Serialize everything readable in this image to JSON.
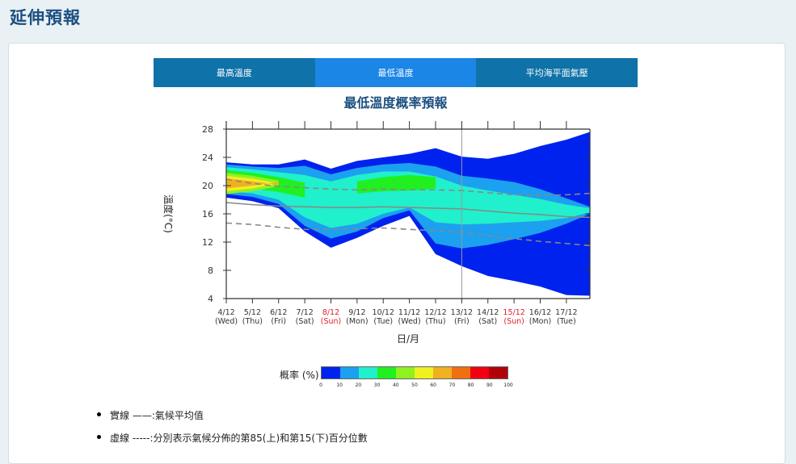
{
  "page": {
    "title": "延伸預報"
  },
  "tabs": [
    {
      "label": "最高溫度",
      "active": false
    },
    {
      "label": "最低溫度",
      "active": true
    },
    {
      "label": "平均海平面氣壓",
      "active": false
    }
  ],
  "chart_data": {
    "type": "area",
    "title": "最低溫度概率預報",
    "xlabel": "日/月",
    "ylabel": "溫度(°C)",
    "ylim": [
      4,
      28
    ],
    "yticks": [
      4,
      8,
      12,
      16,
      20,
      24,
      28
    ],
    "x_dates": [
      "4/12",
      "5/12",
      "6/12",
      "7/12",
      "8/12",
      "9/12",
      "10/12",
      "11/12",
      "12/12",
      "13/12",
      "14/12",
      "15/12",
      "16/12",
      "17/12"
    ],
    "x_days": [
      "(Wed)",
      "(Thu)",
      "(Fri)",
      "(Sat)",
      "(Sun)",
      "(Mon)",
      "(Tue)",
      "(Wed)",
      "(Thu)",
      "(Fri)",
      "(Sat)",
      "(Sun)",
      "(Mon)",
      "(Tue)"
    ],
    "x_red": [
      false,
      false,
      false,
      false,
      true,
      false,
      false,
      false,
      false,
      false,
      false,
      true,
      false,
      false
    ],
    "divider_x": 9,
    "x_positions": [
      0,
      1,
      2,
      3,
      4,
      5,
      6,
      7,
      8,
      9,
      10,
      11,
      12,
      13,
      13.9
    ],
    "climate_mean": [
      17.6,
      17.3,
      17.1,
      17.0,
      16.9,
      16.9,
      17.0,
      16.9,
      16.8,
      16.7,
      16.4,
      16.1,
      15.9,
      15.6,
      15.5
    ],
    "percentile_85": [
      20.9,
      20.3,
      19.9,
      19.7,
      19.5,
      19.4,
      19.5,
      19.4,
      19.4,
      19.3,
      19.0,
      18.7,
      18.6,
      18.7,
      18.9
    ],
    "percentile_15": [
      14.7,
      14.5,
      14.1,
      13.8,
      13.8,
      13.9,
      14.0,
      13.8,
      13.6,
      13.4,
      12.9,
      12.5,
      12.1,
      11.8,
      11.5
    ],
    "prob_bands": [
      {
        "label": "0-10",
        "upper": [
          23.3,
          23.0,
          23.0,
          23.7,
          22.4,
          23.5,
          24.0,
          24.5,
          25.3,
          24.1,
          23.8,
          24.5,
          25.6,
          26.5,
          27.6
        ],
        "lower": [
          18.3,
          17.8,
          16.8,
          13.5,
          11.2,
          12.6,
          14.3,
          15.7,
          10.3,
          8.6,
          7.2,
          6.5,
          5.7,
          4.5,
          4.4
        ]
      },
      {
        "label": "10-20",
        "upper": [
          23.0,
          22.7,
          22.5,
          22.8,
          21.6,
          22.5,
          23.0,
          23.2,
          22.7,
          21.4,
          21.0,
          20.5,
          19.5,
          18.2,
          17.0
        ],
        "lower": [
          18.8,
          18.4,
          17.4,
          14.3,
          12.5,
          13.5,
          15.4,
          16.5,
          11.8,
          11.1,
          11.6,
          12.4,
          13.3,
          14.6,
          16.0
        ]
      },
      {
        "label": "20-30",
        "upper": [
          22.6,
          22.3,
          21.9,
          21.5,
          20.6,
          21.5,
          22.0,
          22.0,
          21.3,
          20.0,
          19.3,
          18.7,
          18.1,
          17.3,
          16.8
        ],
        "lower": [
          19.2,
          18.9,
          18.0,
          15.5,
          14.0,
          14.6,
          16.0,
          16.9,
          14.8,
          14.5,
          14.6,
          14.8,
          15.0,
          15.4,
          16.2
        ]
      },
      {
        "label": "30-40",
        "upper": [
          22.2,
          21.8,
          21.2,
          20.4,
          null,
          20.6,
          21.2,
          21.5,
          21.2
        ],
        "lower": [
          19.8,
          19.6,
          19.1,
          18.3,
          null,
          18.9,
          19.2,
          19.3,
          19.6
        ]
      },
      {
        "label": "40-50",
        "upper": [
          21.8,
          21.4,
          20.7,
          null
        ]
      },
      {
        "label": "50-60",
        "upper": [
          21.4,
          21.0,
          20.3,
          null
        ]
      },
      {
        "label": "60-70",
        "upper": [
          21.0,
          20.6,
          20.1,
          null
        ]
      }
    ],
    "colorbar": {
      "label": "概率 (%)",
      "ticks": [
        "0",
        "10",
        "20",
        "30",
        "40",
        "50",
        "60",
        "70",
        "80",
        "90",
        "100"
      ],
      "colors": [
        "#0022ee",
        "#1ca0f0",
        "#20f0cc",
        "#20f020",
        "#90f020",
        "#f0f020",
        "#f0b020",
        "#f07010",
        "#f00010",
        "#b00008"
      ]
    }
  },
  "legend": [
    {
      "text": "實線 ——:氣候平均值"
    },
    {
      "text": "虛線 -----:分別表示氣候分佈的第85(上)和第15(下)百分位數"
    }
  ]
}
